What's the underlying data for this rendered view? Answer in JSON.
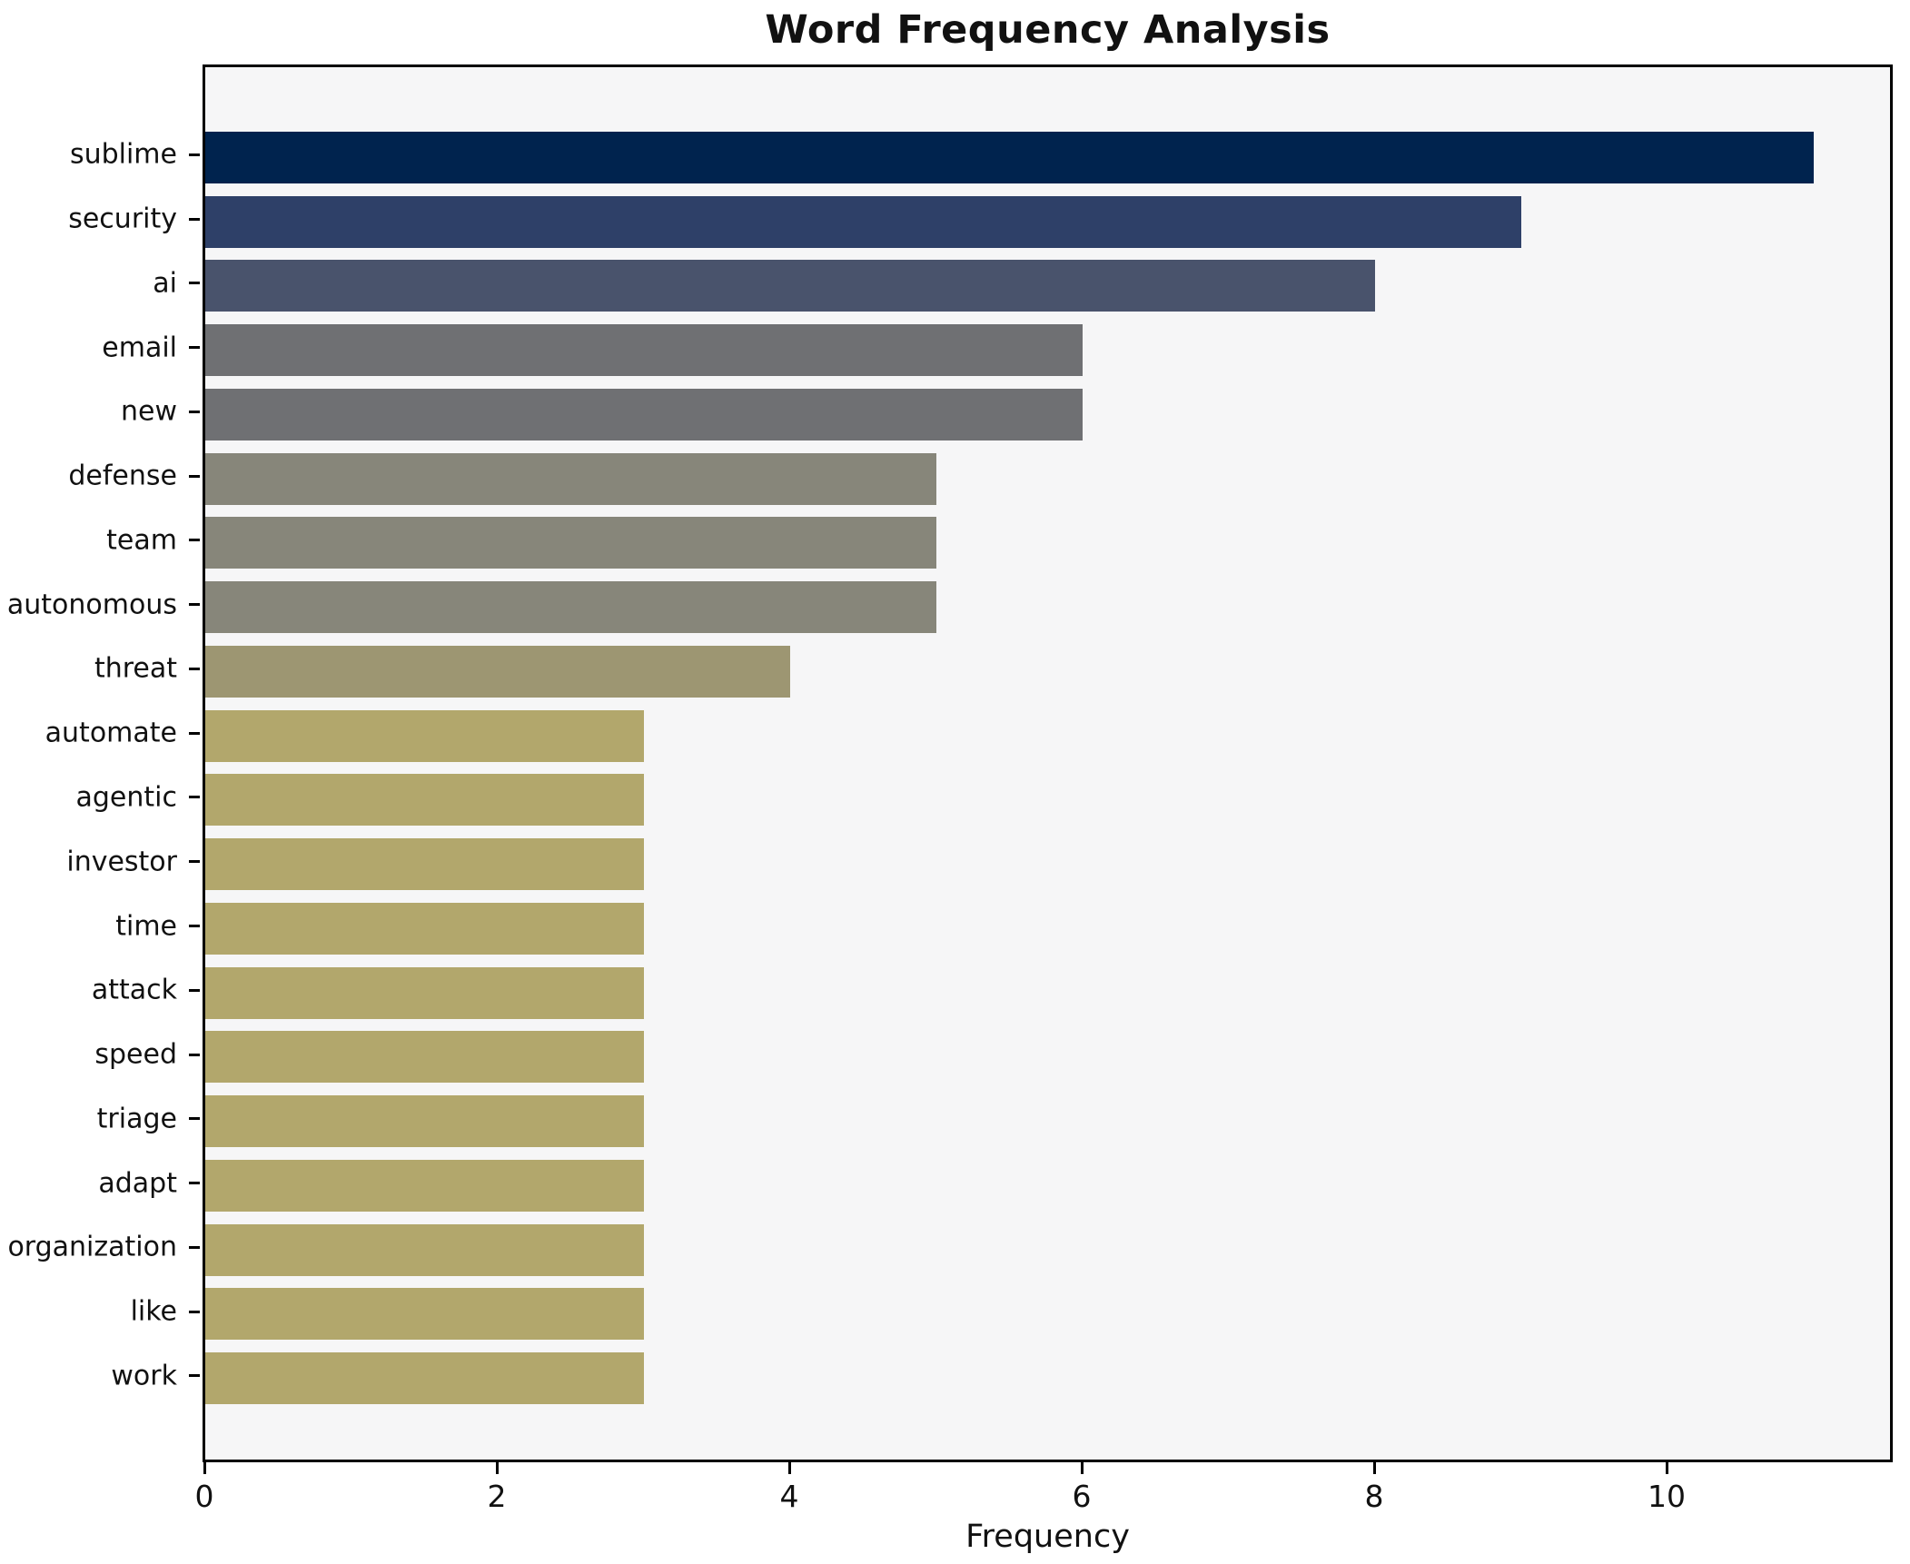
{
  "title": "Word Frequency Analysis",
  "xlabel": "Frequency",
  "chart_data": {
    "type": "bar",
    "orientation": "horizontal",
    "title": "Word Frequency Analysis",
    "xlabel": "Frequency",
    "ylabel": "",
    "categories": [
      "sublime",
      "security",
      "ai",
      "email",
      "new",
      "defense",
      "team",
      "autonomous",
      "threat",
      "automate",
      "agentic",
      "investor",
      "time",
      "attack",
      "speed",
      "triage",
      "adapt",
      "organization",
      "like",
      "work"
    ],
    "values": [
      11,
      9,
      8,
      6,
      6,
      5,
      5,
      5,
      4,
      3,
      3,
      3,
      3,
      3,
      3,
      3,
      3,
      3,
      3,
      3
    ],
    "bar_colors": [
      "#00234e",
      "#2e4068",
      "#49536c",
      "#6f7073",
      "#6f7073",
      "#87867a",
      "#87867a",
      "#87867a",
      "#9d9672",
      "#b2a76c",
      "#b2a76c",
      "#b2a76c",
      "#b2a76c",
      "#b2a76c",
      "#b2a76c",
      "#b2a76c",
      "#b2a76c",
      "#b2a76c",
      "#b2a76c",
      "#b2a76c"
    ],
    "xlim": [
      0,
      11.55
    ],
    "x_tick_values": [
      0,
      2,
      4,
      6,
      8,
      10
    ],
    "x_tick_labels": [
      "0",
      "2",
      "4",
      "6",
      "8",
      "10"
    ],
    "grid": false,
    "legend": null,
    "plot_background": "#f6f6f7",
    "figure_background": "#ffffff",
    "frame_color": "#000000"
  }
}
